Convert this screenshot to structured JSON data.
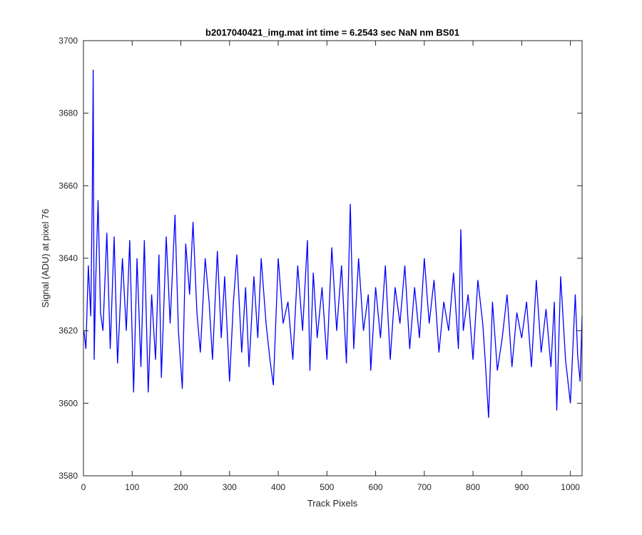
{
  "chart_data": {
    "type": "line",
    "title": "b2017040421_img.mat int time = 6.2543 sec  NaN nm BS01",
    "xlabel": "Track Pixels",
    "ylabel": "Signal (ADU) at pixel 76",
    "xlim": [
      0,
      1024
    ],
    "ylim": [
      3580,
      3700
    ],
    "xticks": [
      0,
      100,
      200,
      300,
      400,
      500,
      600,
      700,
      800,
      900,
      1000
    ],
    "yticks": [
      3580,
      3600,
      3620,
      3640,
      3660,
      3680,
      3700
    ],
    "grid": false,
    "legend": "none",
    "series": [
      {
        "color": "#0000ff",
        "x": [
          1,
          5,
          10,
          15,
          18,
          20,
          22,
          25,
          30,
          35,
          40,
          48,
          55,
          63,
          70,
          80,
          88,
          95,
          103,
          110,
          118,
          125,
          133,
          140,
          148,
          155,
          160,
          170,
          178,
          188,
          195,
          203,
          210,
          218,
          225,
          233,
          240,
          250,
          258,
          265,
          275,
          283,
          290,
          300,
          308,
          315,
          325,
          333,
          340,
          350,
          358,
          365,
          375,
          383,
          390,
          400,
          410,
          420,
          430,
          440,
          450,
          460,
          465,
          472,
          480,
          490,
          500,
          510,
          520,
          530,
          540,
          548,
          555,
          565,
          575,
          585,
          590,
          600,
          610,
          620,
          630,
          640,
          650,
          660,
          670,
          680,
          690,
          700,
          710,
          720,
          730,
          740,
          750,
          760,
          770,
          775,
          780,
          790,
          800,
          810,
          820,
          825,
          832,
          840,
          850,
          860,
          870,
          880,
          890,
          900,
          910,
          920,
          930,
          940,
          950,
          960,
          967,
          972,
          980,
          990,
          1000,
          1010,
          1015,
          1020,
          1024
        ],
        "y": [
          3620,
          3615,
          3638,
          3624,
          3656,
          3692,
          3612,
          3633,
          3656,
          3625,
          3620,
          3647,
          3615,
          3646,
          3611,
          3640,
          3620,
          3645,
          3603,
          3640,
          3610,
          3645,
          3603,
          3630,
          3612,
          3641,
          3607,
          3646,
          3622,
          3652,
          3620,
          3604,
          3644,
          3630,
          3650,
          3625,
          3614,
          3640,
          3628,
          3612,
          3642,
          3618,
          3635,
          3606,
          3628,
          3641,
          3614,
          3632,
          3610,
          3635,
          3618,
          3640,
          3622,
          3612,
          3605,
          3640,
          3622,
          3628,
          3612,
          3638,
          3620,
          3645,
          3609,
          3636,
          3618,
          3632,
          3612,
          3643,
          3620,
          3638,
          3611,
          3655,
          3615,
          3640,
          3620,
          3630,
          3609,
          3632,
          3618,
          3638,
          3612,
          3632,
          3622,
          3638,
          3615,
          3632,
          3618,
          3640,
          3622,
          3634,
          3614,
          3628,
          3620,
          3636,
          3615,
          3648,
          3620,
          3630,
          3612,
          3634,
          3622,
          3612,
          3596,
          3628,
          3609,
          3618,
          3630,
          3610,
          3625,
          3618,
          3628,
          3610,
          3634,
          3614,
          3626,
          3610,
          3628,
          3598,
          3635,
          3612,
          3600,
          3630,
          3613,
          3606,
          3624
        ]
      }
    ]
  }
}
